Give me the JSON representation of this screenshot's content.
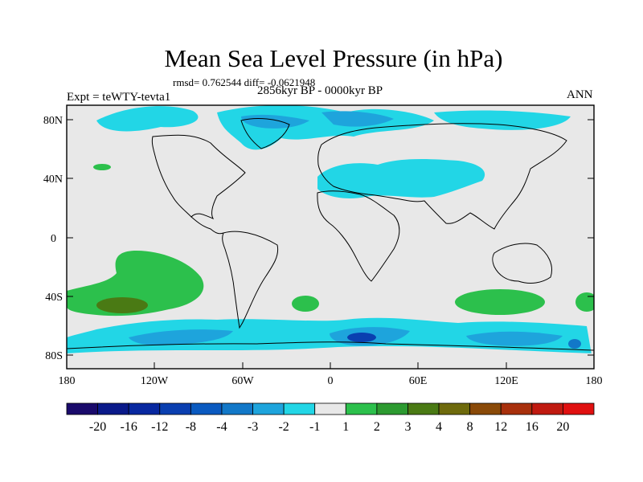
{
  "title": "Mean Sea Level Pressure (in hPa)",
  "stats": "rmsd= 0.762544 diff= -0.0621948",
  "experiment": "Expt = teWTY-tevta1",
  "period": "2856kyr BP - 0000kyr BP",
  "season": "ANN",
  "lat_ticks": [
    "80N",
    "40N",
    "0",
    "40S",
    "80S"
  ],
  "lon_ticks": [
    "180",
    "120W",
    "60W",
    "0",
    "60E",
    "120E",
    "180"
  ],
  "colorbar": {
    "labels": [
      "-20",
      "-16",
      "-12",
      "-8",
      "-4",
      "-3",
      "-2",
      "-1",
      "1",
      "2",
      "3",
      "4",
      "8",
      "12",
      "16",
      "20"
    ],
    "colors": [
      "#1a0a6b",
      "#0a1a8a",
      "#0828a0",
      "#0a3fb0",
      "#0a5ac0",
      "#1278c8",
      "#1ea4dc",
      "#22d6e6",
      "#e8e8e8",
      "#2cc04c",
      "#2c9a30",
      "#4a7a14",
      "#6e6a0c",
      "#8a4a08",
      "#a8300c",
      "#c01a10",
      "#e01010"
    ]
  },
  "colors": {
    "land_neutral": "#e8e8e8",
    "frame": "#000000"
  }
}
